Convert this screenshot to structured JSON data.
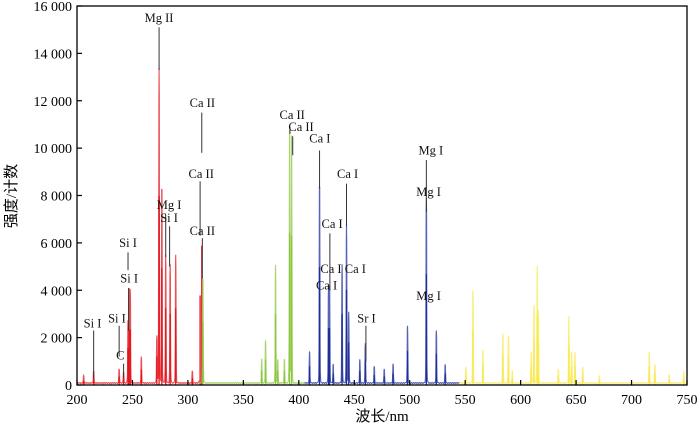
{
  "chart_data": {
    "type": "line",
    "title": "",
    "xlabel": "波长/nm",
    "ylabel": "强度/计数",
    "xlim": [
      200,
      750
    ],
    "ylim": [
      0,
      16000
    ],
    "xticks": [
      200,
      250,
      300,
      350,
      400,
      450,
      500,
      550,
      600,
      650,
      700,
      750
    ],
    "xtick_labels": [
      "200",
      "250",
      "300",
      "350",
      "400",
      "450",
      "500",
      "550",
      "600",
      "650",
      "700",
      "750"
    ],
    "yticks": [
      0,
      2000,
      4000,
      6000,
      8000,
      10000,
      12000,
      14000,
      16000
    ],
    "ytick_labels": [
      "0",
      "2 000",
      "4 000",
      "6 000",
      "8 000",
      "10 000",
      "12 000",
      "14 000",
      "16 000"
    ],
    "grid": false,
    "series": [
      {
        "name": "red",
        "color": "#e3141b",
        "range": [
          200,
          310
        ],
        "peaks": [
          [
            206,
            300
          ],
          [
            215,
            500
          ],
          [
            238,
            600
          ],
          [
            242,
            500
          ],
          [
            246,
            2600
          ],
          [
            247,
            3900
          ],
          [
            248,
            3900
          ],
          [
            258,
            1100
          ],
          [
            272,
            2000
          ],
          [
            274,
            13300
          ],
          [
            276.5,
            8200
          ],
          [
            280,
            5400
          ],
          [
            284,
            5000
          ],
          [
            289,
            5400
          ],
          [
            304,
            500
          ],
          [
            311,
            6300
          ],
          [
            312.5,
            9800
          ]
        ]
      },
      {
        "name": "green",
        "color": "#8cc63f",
        "range": [
          310,
          405
        ],
        "peaks": [
          [
            313.5,
            4400
          ],
          [
            366.5,
            1000
          ],
          [
            370,
            1800
          ],
          [
            379,
            5000
          ],
          [
            381,
            1000
          ],
          [
            387,
            1000
          ],
          [
            391.7,
            10700
          ],
          [
            393.5,
            10500
          ]
        ]
      },
      {
        "name": "blue",
        "color": "#1f2f99",
        "range": [
          405,
          545
        ],
        "peaks": [
          [
            409.7,
            1300
          ],
          [
            418.7,
            8300
          ],
          [
            426.8,
            4000
          ],
          [
            427.7,
            4000
          ],
          [
            431,
            800
          ],
          [
            439,
            5000
          ],
          [
            443,
            6700
          ],
          [
            445,
            3000
          ],
          [
            455,
            1000
          ],
          [
            460,
            1700
          ],
          [
            468,
            700
          ],
          [
            477,
            600
          ],
          [
            485,
            800
          ],
          [
            498,
            2400
          ],
          [
            515,
            7800
          ],
          [
            524,
            2200
          ],
          [
            532,
            800
          ]
        ]
      },
      {
        "name": "yellow",
        "color": "#f7e94f",
        "range": [
          545,
          750
        ],
        "peaks": [
          [
            550.6,
            700
          ],
          [
            557,
            3900
          ],
          [
            566,
            1400
          ],
          [
            584,
            2100
          ],
          [
            589,
            2000
          ],
          [
            592.5,
            500
          ],
          [
            609.5,
            1300
          ],
          [
            612,
            3300
          ],
          [
            615,
            4900
          ],
          [
            616,
            3000
          ],
          [
            634,
            600
          ],
          [
            643.5,
            2800
          ],
          [
            646,
            1300
          ],
          [
            649,
            1300
          ],
          [
            656,
            700
          ],
          [
            671,
            300
          ],
          [
            716,
            1300
          ],
          [
            721,
            800
          ],
          [
            734,
            350
          ],
          [
            747,
            500
          ]
        ]
      }
    ],
    "annotations": [
      {
        "text": "Mg II",
        "x": 274,
        "label_y": 15500,
        "line": [
          274,
          15100,
          13300
        ]
      },
      {
        "text": "Ca II",
        "x": 313,
        "label_y": 11900,
        "line": [
          312.5,
          11500,
          9800
        ]
      },
      {
        "text": "Ca II",
        "x": 312,
        "label_y": 8900,
        "line": [
          311,
          8600,
          6300
        ]
      },
      {
        "text": "Ca II",
        "x": 313,
        "label_y": 6500,
        "line": [
          313,
          6200,
          4500
        ]
      },
      {
        "text": "Mg I",
        "x": 283,
        "label_y": 7600,
        "line": [
          280,
          7200,
          5400
        ]
      },
      {
        "text": "Si I",
        "x": 283,
        "label_y": 7050,
        "line": [
          283.5,
          6700,
          5000
        ]
      },
      {
        "text": "Si I",
        "x": 246,
        "label_y": 6000,
        "line": [
          246,
          5600,
          4850
        ]
      },
      {
        "text": "Si I",
        "x": 247,
        "label_y": 4500,
        "line": [
          246.5,
          4100,
          2300
        ]
      },
      {
        "text": "Si I",
        "x": 214,
        "label_y": 2600,
        "line": [
          215,
          2300,
          300
        ]
      },
      {
        "text": "Si I",
        "x": 236,
        "label_y": 2800,
        "line": [
          238,
          2500,
          1200
        ]
      },
      {
        "text": "C",
        "x": 239,
        "label_y": 1250,
        "line": [
          242,
          900,
          300
        ]
      },
      {
        "text": "Ca II",
        "x": 394,
        "label_y": 11400,
        "line": [
          392,
          10900,
          10600
        ]
      },
      {
        "text": "Ca II",
        "x": 402,
        "label_y": 10900,
        "line": [
          394.5,
          10500,
          9700
        ]
      },
      {
        "text": "Ca I",
        "x": 419,
        "label_y": 10400,
        "line": [
          418.7,
          9900,
          8300
        ]
      },
      {
        "text": "Ca I",
        "x": 444,
        "label_y": 8900,
        "line": [
          443,
          8500,
          6700
        ]
      },
      {
        "text": "Ca I",
        "x": 430,
        "label_y": 6800,
        "line": [
          428,
          6400,
          4000
        ]
      },
      {
        "text": "Ca I",
        "x": 429,
        "label_y": 4900,
        "line": null
      },
      {
        "text": "Ca I",
        "x": 425,
        "label_y": 4200,
        "line": null
      },
      {
        "text": "Ca I",
        "x": 451,
        "label_y": 4900,
        "line": null
      },
      {
        "text": "Sr I",
        "x": 461,
        "label_y": 2800,
        "line": [
          460.5,
          2500,
          1000
        ]
      },
      {
        "text": "Mg I",
        "x": 519,
        "label_y": 9900,
        "line": [
          515,
          9500,
          7800
        ]
      },
      {
        "text": "Mg I",
        "x": 517,
        "label_y": 8150,
        "line": [
          515,
          7800,
          7300
        ]
      },
      {
        "text": "Mg I",
        "x": 517,
        "label_y": 3750,
        "line": null
      }
    ]
  }
}
